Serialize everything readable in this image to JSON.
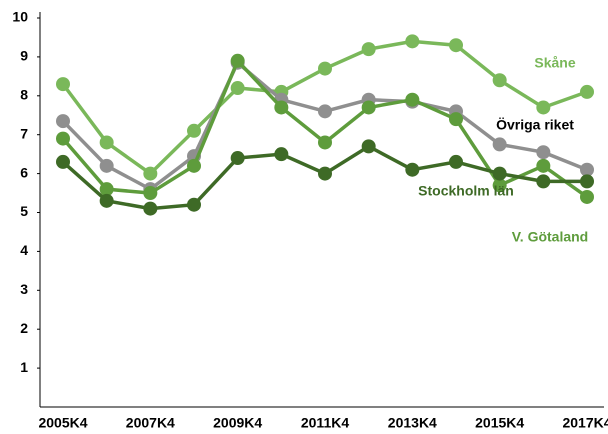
{
  "chart_data": {
    "type": "line",
    "categories": [
      "2005K4",
      null,
      "2007K4",
      null,
      "2009K4",
      null,
      "2011K4",
      null,
      "2013K4",
      null,
      "2015K4",
      null,
      "2017K4"
    ],
    "series": [
      {
        "name": "Skåne",
        "color": "#7ab85a",
        "label_color": "#7ab85a",
        "values": [
          8.3,
          6.8,
          6.0,
          7.1,
          8.2,
          8.1,
          8.7,
          9.2,
          9.4,
          9.3,
          8.4,
          7.7,
          8.1
        ]
      },
      {
        "name": "Övriga riket",
        "color": "#8f8f8f",
        "label_color": "#000000",
        "values": [
          7.35,
          6.2,
          5.6,
          6.45,
          8.85,
          7.9,
          7.6,
          7.9,
          7.85,
          7.6,
          6.75,
          6.55,
          6.1
        ]
      },
      {
        "name": "V. Götaland",
        "color": "#5e9c3c",
        "label_color": "#5e9c3c",
        "values": [
          6.9,
          5.6,
          5.5,
          6.2,
          8.9,
          7.7,
          6.8,
          7.7,
          7.9,
          7.4,
          5.7,
          6.2,
          5.4
        ]
      },
      {
        "name": "Stockholm län",
        "color": "#3e6a26",
        "label_color": "#3e6a26",
        "values": [
          6.3,
          5.3,
          5.1,
          5.2,
          6.4,
          6.5,
          6.0,
          6.7,
          6.1,
          6.3,
          6.0,
          5.8,
          5.8
        ]
      }
    ],
    "ylim": [
      0,
      10
    ],
    "yticks": [
      1,
      2,
      3,
      4,
      5,
      6,
      7,
      8,
      9,
      10
    ],
    "grid": false
  }
}
